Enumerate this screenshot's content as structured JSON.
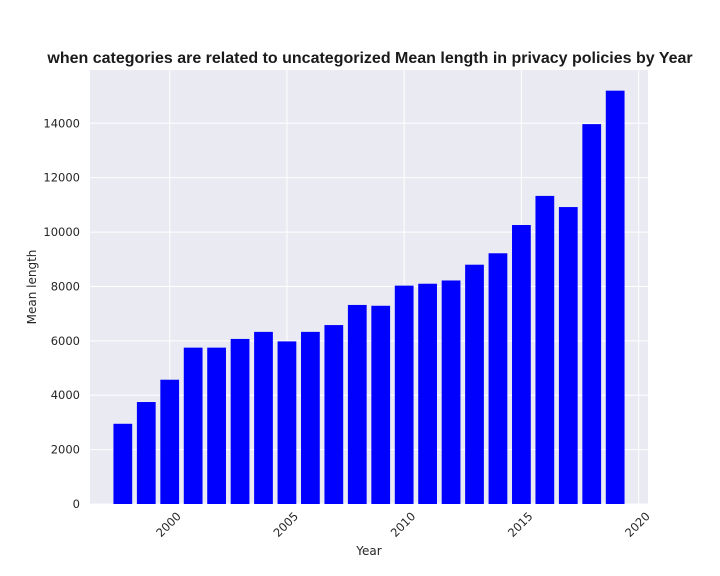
{
  "chart_data": {
    "type": "bar",
    "title": "when categories are related to uncategorized Mean length in privacy policies by Year",
    "xlabel": "Year",
    "ylabel": "Mean length",
    "x": [
      1998,
      1999,
      2000,
      2001,
      2002,
      2003,
      2004,
      2005,
      2006,
      2007,
      2008,
      2009,
      2010,
      2011,
      2012,
      2013,
      2014,
      2015,
      2016,
      2017,
      2018,
      2019
    ],
    "values": [
      2950,
      3750,
      4570,
      5750,
      5750,
      6070,
      6330,
      5980,
      6330,
      6580,
      7320,
      7290,
      8030,
      8100,
      8220,
      8800,
      9220,
      10260,
      11330,
      10920,
      13970,
      15200
    ],
    "xticks": [
      "2000",
      "2005",
      "2010",
      "2015",
      "2020"
    ],
    "yticks": [
      "0",
      "2000",
      "4000",
      "6000",
      "8000",
      "10000",
      "12000",
      "14000"
    ],
    "xlim": [
      1996.6,
      2020.4
    ],
    "ylim": [
      0,
      15960
    ],
    "bar_color": "#0000ff",
    "plot_background": "#eaeaf2",
    "grid": true,
    "grid_color": "#ffffff"
  }
}
